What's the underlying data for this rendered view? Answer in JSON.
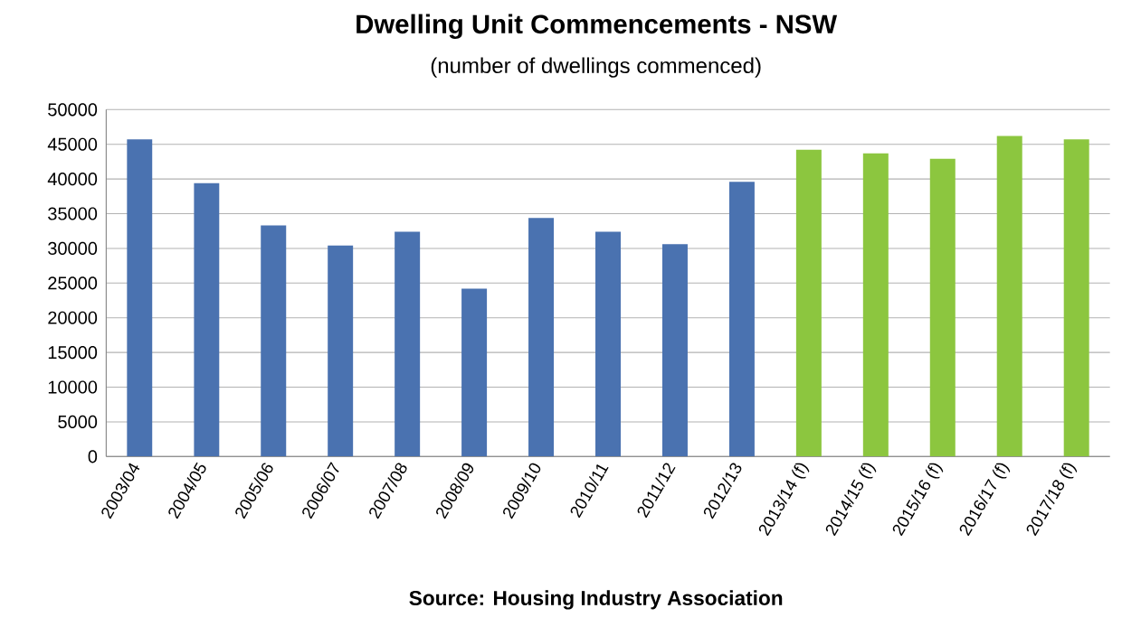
{
  "chart_data": {
    "type": "bar",
    "title": "Dwelling Unit Commencements - NSW",
    "subtitle": "(number of dwellings commenced)",
    "categories": [
      "2003/04",
      "2004/05",
      "2005/06",
      "2006/07",
      "2007/08",
      "2008/09",
      "2009/10",
      "2010/11",
      "2011/12",
      "2012/13",
      "2013/14 (f)",
      "2014/15 (f)",
      "2015/16 (f)",
      "2016/17 (f)",
      "2017/18 (f)"
    ],
    "values": [
      45700,
      39400,
      33300,
      30400,
      32400,
      24200,
      34400,
      32400,
      30600,
      39600,
      44200,
      43700,
      42900,
      46200,
      45700
    ],
    "colors": [
      "#4a72b0",
      "#4a72b0",
      "#4a72b0",
      "#4a72b0",
      "#4a72b0",
      "#4a72b0",
      "#4a72b0",
      "#4a72b0",
      "#4a72b0",
      "#4a72b0",
      "#8cc63f",
      "#8cc63f",
      "#8cc63f",
      "#8cc63f",
      "#8cc63f"
    ],
    "ylim": [
      0,
      50000
    ],
    "yticks": [
      0,
      5000,
      10000,
      15000,
      20000,
      25000,
      30000,
      35000,
      40000,
      45000,
      50000
    ],
    "grid": "y",
    "annotations": [
      "Source: Housing Industry Association"
    ]
  }
}
